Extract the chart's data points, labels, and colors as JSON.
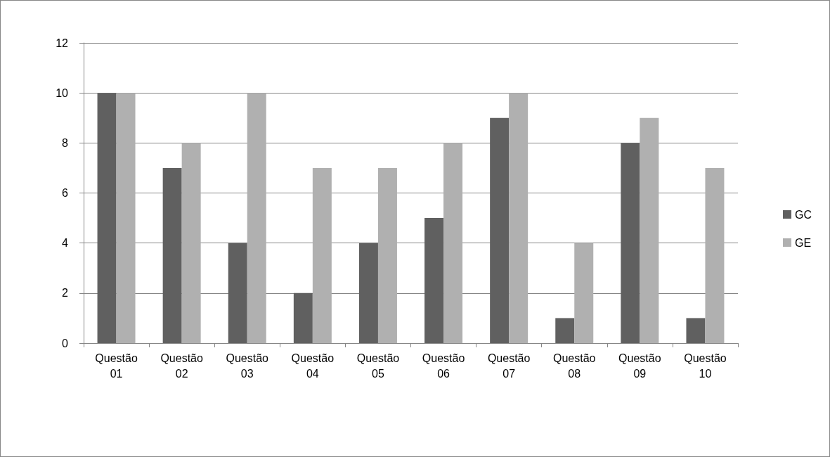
{
  "chart_data": {
    "type": "bar",
    "categories": [
      "Questão 01",
      "Questão 02",
      "Questão 03",
      "Questão 04",
      "Questão 05",
      "Questão 06",
      "Questão 07",
      "Questão 08",
      "Questão 09",
      "Questão 10"
    ],
    "series": [
      {
        "name": "GC",
        "color": "#606060",
        "values": [
          10,
          7,
          4,
          2,
          4,
          5,
          9,
          1,
          8,
          1
        ]
      },
      {
        "name": "GE",
        "color": "#b0b0b0",
        "values": [
          10,
          8,
          10,
          7,
          7,
          8,
          10,
          4,
          9,
          7
        ]
      }
    ],
    "ylim": [
      0,
      12
    ],
    "yticks": [
      0,
      2,
      4,
      6,
      8,
      10,
      12
    ],
    "grid": "y",
    "legend": "right"
  }
}
